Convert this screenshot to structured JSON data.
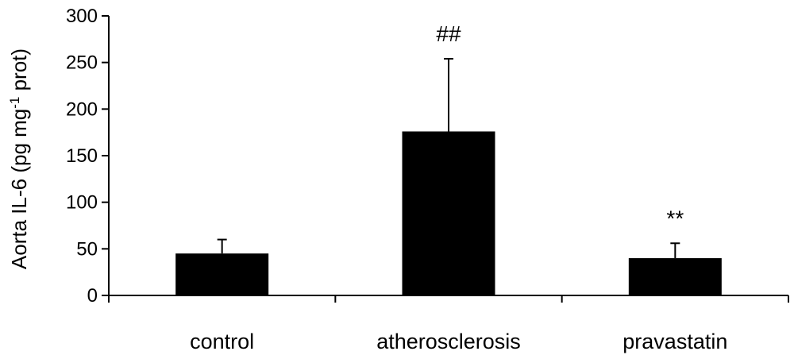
{
  "chart_data": {
    "type": "bar",
    "title": "",
    "xlabel": "",
    "ylabel": {
      "prefix": "Aorta IL-6 (pg mg",
      "superscript": "-1",
      "suffix": " prot)"
    },
    "ylim": [
      0,
      300
    ],
    "yticks": [
      0,
      50,
      100,
      150,
      200,
      250,
      300
    ],
    "categories": [
      "control",
      "atherosclerosis",
      "pravastatin"
    ],
    "values": [
      45,
      176,
      40
    ],
    "errors": [
      15,
      78,
      16
    ],
    "significance": [
      "",
      "##",
      "**"
    ],
    "bar_color": "#000000",
    "grid": false,
    "legend": "none"
  }
}
